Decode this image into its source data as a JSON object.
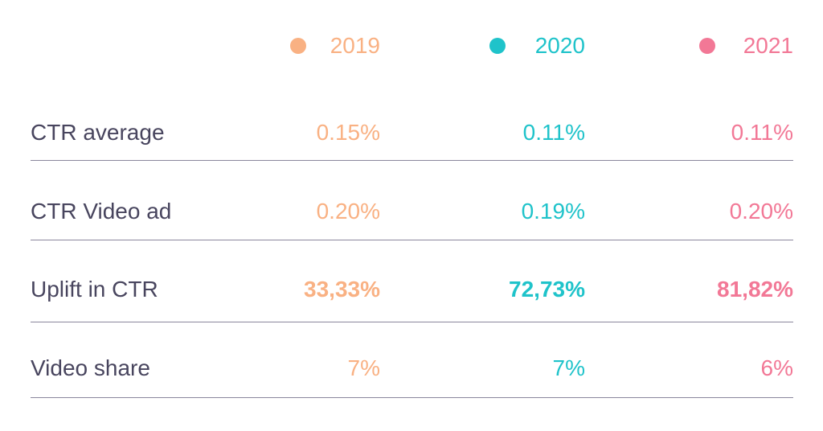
{
  "table": {
    "columns": [
      "2019",
      "2020",
      "2021"
    ],
    "column_colors": [
      "#f9b183",
      "#1fc3ca",
      "#f27896"
    ],
    "rows": [
      [
        "CTR average",
        "0.15%",
        "0.11%",
        "0.11%"
      ],
      [
        "CTR Video ad",
        "0.20%",
        "0.19%",
        "0.20%"
      ],
      [
        "Uplift in CTR",
        "33,33%",
        "72,73%",
        "81,82%"
      ],
      [
        "Video share",
        "7%",
        "7%",
        "6%"
      ]
    ]
  }
}
